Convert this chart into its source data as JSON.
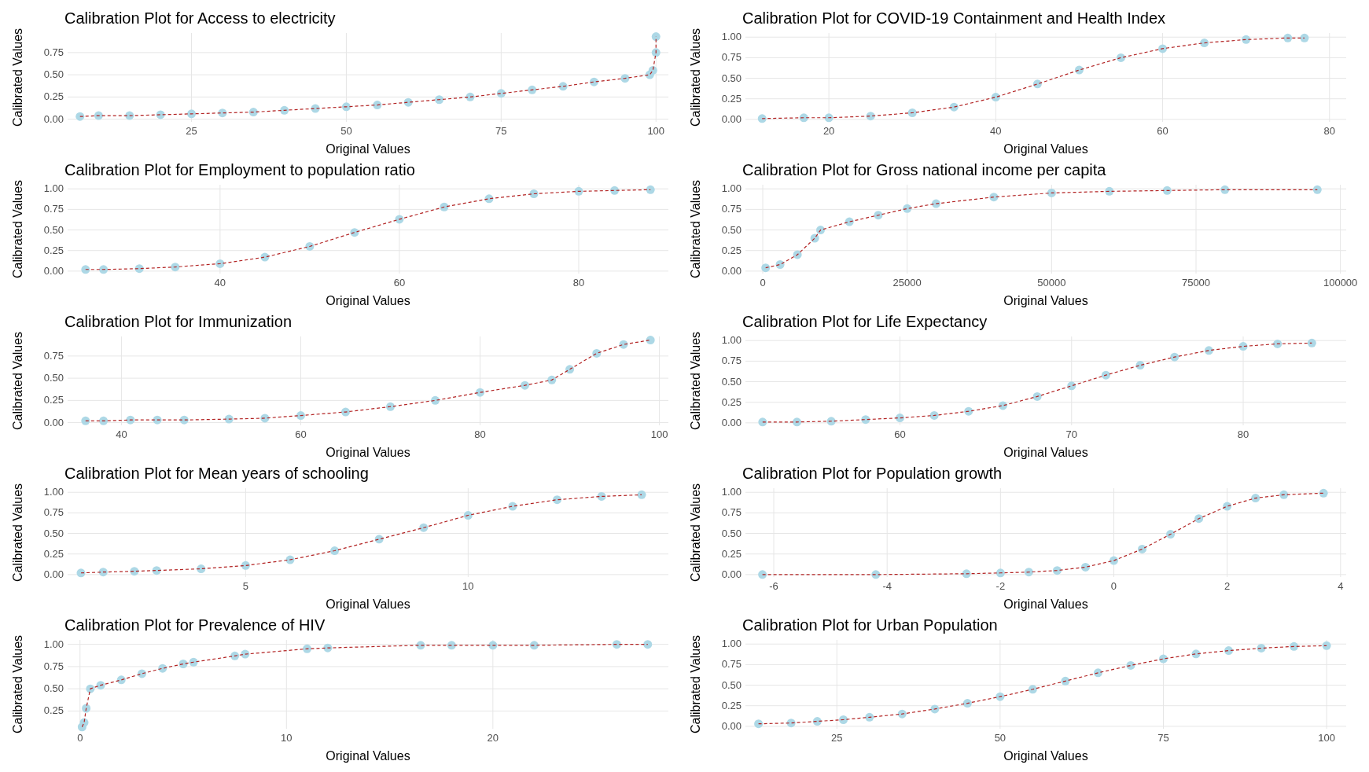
{
  "chart_data": [
    {
      "type": "scatter",
      "title": "Calibration Plot for Access to electricity",
      "xlabel": "Original Values",
      "ylabel": "Calibrated Values",
      "xlim": [
        5,
        102
      ],
      "xticks": [
        25,
        50,
        75,
        100
      ],
      "ylim": [
        -0.03,
        0.97
      ],
      "yticks": [
        {
          "value": 0,
          "label": "0.00"
        },
        {
          "value": 0.25,
          "label": "0.25"
        },
        {
          "value": 0.5,
          "label": "0.50"
        },
        {
          "value": 0.75,
          "label": "0.75"
        }
      ],
      "grid": true,
      "series": [
        {
          "type": "scatter",
          "marker": "circle",
          "color": "#add8e6",
          "x": [
            7,
            10,
            15,
            20,
            25,
            30,
            35,
            40,
            45,
            50,
            55,
            60,
            65,
            70,
            75,
            80,
            85,
            90,
            95,
            99,
            99.5,
            100,
            100
          ],
          "values": [
            0.03,
            0.04,
            0.04,
            0.05,
            0.06,
            0.07,
            0.08,
            0.1,
            0.12,
            0.14,
            0.16,
            0.19,
            0.22,
            0.25,
            0.29,
            0.33,
            0.37,
            0.42,
            0.46,
            0.5,
            0.55,
            0.75,
            0.93
          ]
        },
        {
          "type": "line",
          "line_style": "dashed",
          "color": "#b22222",
          "x": [
            7,
            10,
            15,
            20,
            25,
            30,
            35,
            40,
            45,
            50,
            55,
            60,
            65,
            70,
            75,
            80,
            85,
            90,
            95,
            99,
            99.5,
            100,
            100
          ],
          "values": [
            0.03,
            0.04,
            0.04,
            0.05,
            0.06,
            0.07,
            0.08,
            0.1,
            0.12,
            0.14,
            0.16,
            0.19,
            0.22,
            0.25,
            0.29,
            0.33,
            0.37,
            0.42,
            0.46,
            0.5,
            0.55,
            0.75,
            0.93
          ]
        }
      ]
    },
    {
      "type": "scatter",
      "title": "Calibration Plot for COVID-19 Containment and Health Index",
      "xlabel": "Original Values",
      "ylabel": "Calibrated Values",
      "xlim": [
        10,
        82
      ],
      "xticks": [
        20,
        40,
        60,
        80
      ],
      "ylim": [
        -0.03,
        1.05
      ],
      "yticks": [
        {
          "value": 0,
          "label": "0.00"
        },
        {
          "value": 0.25,
          "label": "0.25"
        },
        {
          "value": 0.5,
          "label": "0.50"
        },
        {
          "value": 0.75,
          "label": "0.75"
        },
        {
          "value": 1,
          "label": "1.00"
        }
      ],
      "grid": true,
      "series": [
        {
          "type": "scatter",
          "marker": "circle",
          "color": "#add8e6",
          "x": [
            12,
            17,
            20,
            25,
            30,
            35,
            40,
            45,
            50,
            55,
            60,
            65,
            70,
            75,
            77
          ],
          "values": [
            0.01,
            0.02,
            0.02,
            0.04,
            0.08,
            0.15,
            0.27,
            0.43,
            0.6,
            0.75,
            0.86,
            0.93,
            0.97,
            0.99,
            0.99
          ]
        },
        {
          "type": "line",
          "line_style": "dashed",
          "color": "#b22222",
          "x": [
            12,
            17,
            20,
            25,
            30,
            35,
            40,
            45,
            50,
            55,
            60,
            65,
            70,
            75,
            77
          ],
          "values": [
            0.01,
            0.02,
            0.02,
            0.04,
            0.08,
            0.15,
            0.27,
            0.43,
            0.6,
            0.75,
            0.86,
            0.93,
            0.97,
            0.99,
            0.99
          ]
        }
      ]
    },
    {
      "type": "scatter",
      "title": "Calibration Plot for Employment to population ratio",
      "xlabel": "Original Values",
      "ylabel": "Calibrated Values",
      "xlim": [
        23,
        90
      ],
      "xticks": [
        40,
        60,
        80
      ],
      "ylim": [
        -0.03,
        1.05
      ],
      "yticks": [
        {
          "value": 0,
          "label": "0.00"
        },
        {
          "value": 0.25,
          "label": "0.25"
        },
        {
          "value": 0.5,
          "label": "0.50"
        },
        {
          "value": 0.75,
          "label": "0.75"
        },
        {
          "value": 1,
          "label": "1.00"
        }
      ],
      "grid": true,
      "series": [
        {
          "type": "scatter",
          "marker": "circle",
          "color": "#add8e6",
          "x": [
            25,
            27,
            31,
            35,
            40,
            45,
            50,
            55,
            60,
            65,
            70,
            75,
            80,
            84,
            88
          ],
          "values": [
            0.02,
            0.02,
            0.03,
            0.05,
            0.09,
            0.17,
            0.3,
            0.47,
            0.63,
            0.78,
            0.88,
            0.94,
            0.97,
            0.98,
            0.99
          ]
        },
        {
          "type": "line",
          "line_style": "dashed",
          "color": "#b22222",
          "x": [
            25,
            27,
            31,
            35,
            40,
            45,
            50,
            55,
            60,
            65,
            70,
            75,
            80,
            84,
            88
          ],
          "values": [
            0.02,
            0.02,
            0.03,
            0.05,
            0.09,
            0.17,
            0.3,
            0.47,
            0.63,
            0.78,
            0.88,
            0.94,
            0.97,
            0.98,
            0.99
          ]
        }
      ]
    },
    {
      "type": "scatter",
      "title": "Calibration Plot for Gross national income per capita",
      "xlabel": "Original Values",
      "ylabel": "Calibrated Values",
      "xlim": [
        -3000,
        101000
      ],
      "xticks": [
        0,
        25000,
        50000,
        75000,
        100000
      ],
      "ylim": [
        -0.03,
        1.05
      ],
      "yticks": [
        {
          "value": 0,
          "label": "0.00"
        },
        {
          "value": 0.25,
          "label": "0.25"
        },
        {
          "value": 0.5,
          "label": "0.50"
        },
        {
          "value": 0.75,
          "label": "0.75"
        },
        {
          "value": 1,
          "label": "1.00"
        }
      ],
      "grid": true,
      "series": [
        {
          "type": "scatter",
          "marker": "circle",
          "color": "#add8e6",
          "x": [
            500,
            3000,
            6000,
            9000,
            10000,
            15000,
            20000,
            25000,
            30000,
            40000,
            50000,
            60000,
            70000,
            80000,
            96000
          ],
          "values": [
            0.04,
            0.08,
            0.2,
            0.4,
            0.5,
            0.6,
            0.68,
            0.76,
            0.82,
            0.9,
            0.95,
            0.97,
            0.98,
            0.99,
            0.99
          ]
        },
        {
          "type": "line",
          "line_style": "dashed",
          "color": "#b22222",
          "x": [
            500,
            3000,
            6000,
            9000,
            10000,
            15000,
            20000,
            25000,
            30000,
            40000,
            50000,
            60000,
            70000,
            80000,
            96000
          ],
          "values": [
            0.04,
            0.08,
            0.2,
            0.4,
            0.5,
            0.6,
            0.68,
            0.76,
            0.82,
            0.9,
            0.95,
            0.97,
            0.98,
            0.99,
            0.99
          ]
        }
      ]
    },
    {
      "type": "scatter",
      "title": "Calibration Plot for Immunization",
      "xlabel": "Original Values",
      "ylabel": "Calibrated Values",
      "xlim": [
        34,
        101
      ],
      "xticks": [
        40,
        60,
        80,
        100
      ],
      "ylim": [
        -0.03,
        0.97
      ],
      "yticks": [
        {
          "value": 0,
          "label": "0.00"
        },
        {
          "value": 0.25,
          "label": "0.25"
        },
        {
          "value": 0.5,
          "label": "0.50"
        },
        {
          "value": 0.75,
          "label": "0.75"
        }
      ],
      "grid": true,
      "series": [
        {
          "type": "scatter",
          "marker": "circle",
          "color": "#add8e6",
          "x": [
            36,
            38,
            41,
            44,
            47,
            52,
            56,
            60,
            65,
            70,
            75,
            80,
            85,
            88,
            90,
            93,
            96,
            99
          ],
          "values": [
            0.02,
            0.02,
            0.03,
            0.03,
            0.03,
            0.04,
            0.05,
            0.08,
            0.12,
            0.18,
            0.25,
            0.34,
            0.42,
            0.48,
            0.6,
            0.78,
            0.88,
            0.93
          ]
        },
        {
          "type": "line",
          "line_style": "dashed",
          "color": "#b22222",
          "x": [
            36,
            38,
            41,
            44,
            47,
            52,
            56,
            60,
            65,
            70,
            75,
            80,
            85,
            88,
            90,
            93,
            96,
            99
          ],
          "values": [
            0.02,
            0.02,
            0.03,
            0.03,
            0.03,
            0.04,
            0.05,
            0.08,
            0.12,
            0.18,
            0.25,
            0.34,
            0.42,
            0.48,
            0.6,
            0.78,
            0.88,
            0.93
          ]
        }
      ]
    },
    {
      "type": "scatter",
      "title": "Calibration Plot for Life Expectancy",
      "xlabel": "Original Values",
      "ylabel": "Calibrated Values",
      "xlim": [
        51,
        86
      ],
      "xticks": [
        60,
        70,
        80
      ],
      "ylim": [
        -0.03,
        1.05
      ],
      "yticks": [
        {
          "value": 0,
          "label": "0.00"
        },
        {
          "value": 0.25,
          "label": "0.25"
        },
        {
          "value": 0.5,
          "label": "0.50"
        },
        {
          "value": 0.75,
          "label": "0.75"
        },
        {
          "value": 1,
          "label": "1.00"
        }
      ],
      "grid": true,
      "series": [
        {
          "type": "scatter",
          "marker": "circle",
          "color": "#add8e6",
          "x": [
            52,
            54,
            56,
            58,
            60,
            62,
            64,
            66,
            68,
            70,
            72,
            74,
            76,
            78,
            80,
            82,
            84
          ],
          "values": [
            0.01,
            0.01,
            0.02,
            0.04,
            0.06,
            0.09,
            0.14,
            0.21,
            0.32,
            0.45,
            0.58,
            0.7,
            0.8,
            0.88,
            0.93,
            0.96,
            0.97
          ]
        },
        {
          "type": "line",
          "line_style": "dashed",
          "color": "#b22222",
          "x": [
            52,
            54,
            56,
            58,
            60,
            62,
            64,
            66,
            68,
            70,
            72,
            74,
            76,
            78,
            80,
            82,
            84
          ],
          "values": [
            0.01,
            0.01,
            0.02,
            0.04,
            0.06,
            0.09,
            0.14,
            0.21,
            0.32,
            0.45,
            0.58,
            0.7,
            0.8,
            0.88,
            0.93,
            0.96,
            0.97
          ]
        }
      ]
    },
    {
      "type": "scatter",
      "title": "Calibration Plot for Mean years of schooling",
      "xlabel": "Original Values",
      "ylabel": "Calibrated Values",
      "xlim": [
        1,
        14.5
      ],
      "xticks": [
        5,
        10
      ],
      "ylim": [
        -0.03,
        1.05
      ],
      "yticks": [
        {
          "value": 0,
          "label": "0.00"
        },
        {
          "value": 0.25,
          "label": "0.25"
        },
        {
          "value": 0.5,
          "label": "0.50"
        },
        {
          "value": 0.75,
          "label": "0.75"
        },
        {
          "value": 1,
          "label": "1.00"
        }
      ],
      "grid": true,
      "series": [
        {
          "type": "scatter",
          "marker": "circle",
          "color": "#add8e6",
          "x": [
            1.3,
            1.8,
            2.5,
            3,
            4,
            5,
            6,
            7,
            8,
            9,
            10,
            11,
            12,
            13,
            13.9
          ],
          "values": [
            0.02,
            0.03,
            0.04,
            0.05,
            0.07,
            0.11,
            0.18,
            0.29,
            0.43,
            0.57,
            0.72,
            0.83,
            0.91,
            0.95,
            0.97
          ]
        },
        {
          "type": "line",
          "line_style": "dashed",
          "color": "#b22222",
          "x": [
            1.3,
            1.8,
            2.5,
            3,
            4,
            5,
            6,
            7,
            8,
            9,
            10,
            11,
            12,
            13,
            13.9
          ],
          "values": [
            0.02,
            0.03,
            0.04,
            0.05,
            0.07,
            0.11,
            0.18,
            0.29,
            0.43,
            0.57,
            0.72,
            0.83,
            0.91,
            0.95,
            0.97
          ]
        }
      ]
    },
    {
      "type": "scatter",
      "title": "Calibration Plot for Population growth",
      "xlabel": "Original Values",
      "ylabel": "Calibrated Values",
      "xlim": [
        -6.5,
        4.1
      ],
      "xticks": [
        -6,
        -4,
        -2,
        0,
        2,
        4
      ],
      "ylim": [
        -0.03,
        1.05
      ],
      "yticks": [
        {
          "value": 0,
          "label": "0.00"
        },
        {
          "value": 0.25,
          "label": "0.25"
        },
        {
          "value": 0.5,
          "label": "0.50"
        },
        {
          "value": 0.75,
          "label": "0.75"
        },
        {
          "value": 1,
          "label": "1.00"
        }
      ],
      "grid": true,
      "series": [
        {
          "type": "scatter",
          "marker": "circle",
          "color": "#add8e6",
          "x": [
            -6.2,
            -4.2,
            -2.6,
            -2,
            -1.5,
            -1,
            -0.5,
            0,
            0.5,
            1,
            1.5,
            2,
            2.5,
            3,
            3.7
          ],
          "values": [
            0,
            0,
            0.01,
            0.02,
            0.03,
            0.05,
            0.09,
            0.17,
            0.31,
            0.49,
            0.68,
            0.83,
            0.93,
            0.97,
            0.99
          ]
        },
        {
          "type": "line",
          "line_style": "dashed",
          "color": "#b22222",
          "x": [
            -6.2,
            -4.2,
            -2.6,
            -2,
            -1.5,
            -1,
            -0.5,
            0,
            0.5,
            1,
            1.5,
            2,
            2.5,
            3,
            3.7
          ],
          "values": [
            0,
            0,
            0.01,
            0.02,
            0.03,
            0.05,
            0.09,
            0.17,
            0.31,
            0.49,
            0.68,
            0.83,
            0.93,
            0.97,
            0.99
          ]
        }
      ]
    },
    {
      "type": "scatter",
      "title": "Calibration Plot for Prevalence of HIV",
      "xlabel": "Original Values",
      "ylabel": "Calibrated Values",
      "xlim": [
        -0.6,
        28.5
      ],
      "xticks": [
        0,
        10,
        20
      ],
      "ylim": [
        0.05,
        1.05
      ],
      "yticks": [
        {
          "value": 0.25,
          "label": "0.25"
        },
        {
          "value": 0.5,
          "label": "0.50"
        },
        {
          "value": 0.75,
          "label": "0.75"
        },
        {
          "value": 1,
          "label": "1.00"
        }
      ],
      "grid": true,
      "series": [
        {
          "type": "scatter",
          "marker": "circle",
          "color": "#add8e6",
          "x": [
            0.1,
            0.2,
            0.3,
            0.5,
            1,
            2,
            3,
            4,
            5,
            5.5,
            7.5,
            8,
            11,
            12,
            16.5,
            18,
            20,
            22,
            26,
            27.5
          ],
          "values": [
            0.07,
            0.12,
            0.28,
            0.5,
            0.54,
            0.6,
            0.67,
            0.73,
            0.78,
            0.8,
            0.87,
            0.89,
            0.95,
            0.96,
            0.99,
            0.99,
            0.99,
            0.99,
            1,
            1
          ]
        },
        {
          "type": "line",
          "line_style": "dashed",
          "color": "#b22222",
          "x": [
            0.1,
            0.2,
            0.3,
            0.5,
            1,
            2,
            3,
            4,
            5,
            5.5,
            7.5,
            8,
            11,
            12,
            16.5,
            18,
            20,
            22,
            26,
            27.5
          ],
          "values": [
            0.07,
            0.12,
            0.28,
            0.5,
            0.54,
            0.6,
            0.67,
            0.73,
            0.78,
            0.8,
            0.87,
            0.89,
            0.95,
            0.96,
            0.99,
            0.99,
            0.99,
            0.99,
            1,
            1
          ]
        }
      ]
    },
    {
      "type": "scatter",
      "title": "Calibration Plot for Urban Population",
      "xlabel": "Original Values",
      "ylabel": "Calibrated Values",
      "xlim": [
        11,
        103
      ],
      "xticks": [
        25,
        50,
        75,
        100
      ],
      "ylim": [
        -0.03,
        1.05
      ],
      "yticks": [
        {
          "value": 0,
          "label": "0.00"
        },
        {
          "value": 0.25,
          "label": "0.25"
        },
        {
          "value": 0.5,
          "label": "0.50"
        },
        {
          "value": 0.75,
          "label": "0.75"
        },
        {
          "value": 1,
          "label": "1.00"
        }
      ],
      "grid": true,
      "series": [
        {
          "type": "scatter",
          "marker": "circle",
          "color": "#add8e6",
          "x": [
            13,
            18,
            22,
            26,
            30,
            35,
            40,
            45,
            50,
            55,
            60,
            65,
            70,
            75,
            80,
            85,
            90,
            95,
            100
          ],
          "values": [
            0.03,
            0.04,
            0.06,
            0.08,
            0.11,
            0.15,
            0.21,
            0.28,
            0.36,
            0.45,
            0.55,
            0.65,
            0.74,
            0.82,
            0.88,
            0.92,
            0.95,
            0.97,
            0.98
          ]
        },
        {
          "type": "line",
          "line_style": "dashed",
          "color": "#b22222",
          "x": [
            13,
            18,
            22,
            26,
            30,
            35,
            40,
            45,
            50,
            55,
            60,
            65,
            70,
            75,
            80,
            85,
            90,
            95,
            100
          ],
          "values": [
            0.03,
            0.04,
            0.06,
            0.08,
            0.11,
            0.15,
            0.21,
            0.28,
            0.36,
            0.45,
            0.55,
            0.65,
            0.74,
            0.82,
            0.88,
            0.92,
            0.95,
            0.97,
            0.98
          ]
        }
      ]
    }
  ]
}
